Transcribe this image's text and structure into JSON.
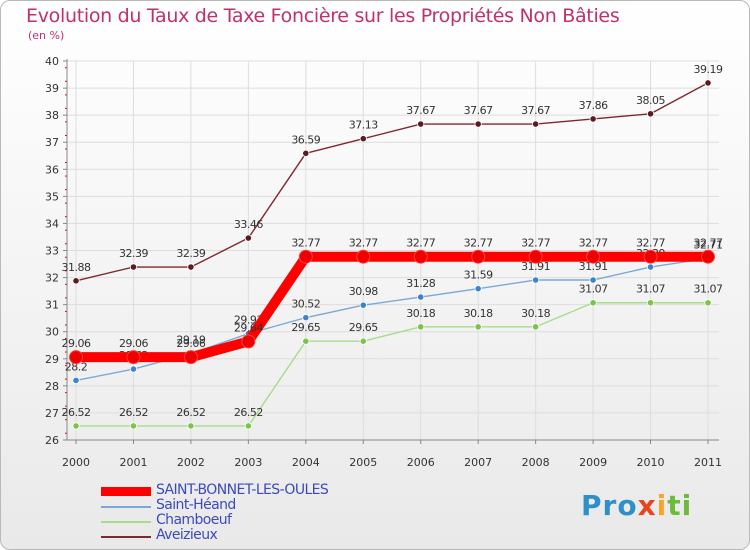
{
  "chart_data": {
    "type": "line",
    "title": "Evolution du Taux de Taxe Foncière sur les Propriétés Non Bâties",
    "unit_label": "(en %)",
    "xlabel": "",
    "ylabel": "",
    "ylim": [
      26,
      40
    ],
    "y_ticks": [
      "26",
      "27",
      "28",
      "29",
      "30",
      "31",
      "32",
      "33",
      "34",
      "35",
      "36",
      "37",
      "38",
      "39",
      "40"
    ],
    "categories": [
      "2000",
      "2001",
      "2002",
      "2003",
      "2004",
      "2005",
      "2006",
      "2007",
      "2008",
      "2009",
      "2010",
      "2011"
    ],
    "series": [
      {
        "name": "Aveizieux",
        "color": "#7d2a2f",
        "marker": "#5c1a1f",
        "values": [
          31.88,
          32.39,
          32.39,
          33.46,
          36.59,
          37.13,
          37.67,
          37.67,
          37.67,
          37.86,
          38.05,
          39.19
        ],
        "value_labels": [
          "31.88",
          "32.39",
          "32.39",
          "33.46",
          "36.59",
          "37.13",
          "37.67",
          "37.67",
          "37.67",
          "37.86",
          "38.05",
          "39.19"
        ]
      },
      {
        "name": "Chamboeuf",
        "color": "#a8db8c",
        "marker": "#7cc34a",
        "values": [
          26.52,
          26.52,
          26.52,
          26.52,
          29.65,
          29.65,
          30.18,
          30.18,
          30.18,
          31.07,
          31.07,
          31.07
        ],
        "value_labels": [
          "26.52",
          "26.52",
          "26.52",
          "26.52",
          "29.65",
          "29.65",
          "30.18",
          "30.18",
          "30.18",
          "31.07",
          "31.07",
          "31.07"
        ]
      },
      {
        "name": "Saint-Héand",
        "color": "#7aa8d6",
        "marker": "#3c83c9",
        "values": [
          28.2,
          28.62,
          29.19,
          29.93,
          30.52,
          30.98,
          31.28,
          31.59,
          31.91,
          31.91,
          32.39,
          32.71
        ],
        "value_labels": [
          "28.2",
          "28.62",
          "29.19",
          "29.93",
          "30.52",
          "30.98",
          "31.28",
          "31.59",
          "31.91",
          "31.91",
          "32.39",
          "32.71"
        ]
      },
      {
        "name": "SAINT-BONNET-LES-OULES",
        "color": "#ff0000",
        "marker": "#ee0000",
        "values": [
          29.06,
          29.06,
          29.06,
          29.64,
          32.77,
          32.77,
          32.77,
          32.77,
          32.77,
          32.77,
          32.77,
          32.77
        ],
        "value_labels": [
          "29.06",
          "29.06",
          "29.06",
          "29.64",
          "32.77",
          "32.77",
          "32.77",
          "32.77",
          "32.77",
          "32.77",
          "32.77",
          "32.77"
        ]
      }
    ],
    "legend": [
      "SAINT-BONNET-LES-OULES",
      "Saint-Héand",
      "Chamboeuf",
      "Aveizieux"
    ],
    "grid": true,
    "legend_position": "bottom-left"
  },
  "brand": {
    "p1": "Pro",
    "p2": "x",
    "p3": "i",
    "p4": "ti"
  }
}
